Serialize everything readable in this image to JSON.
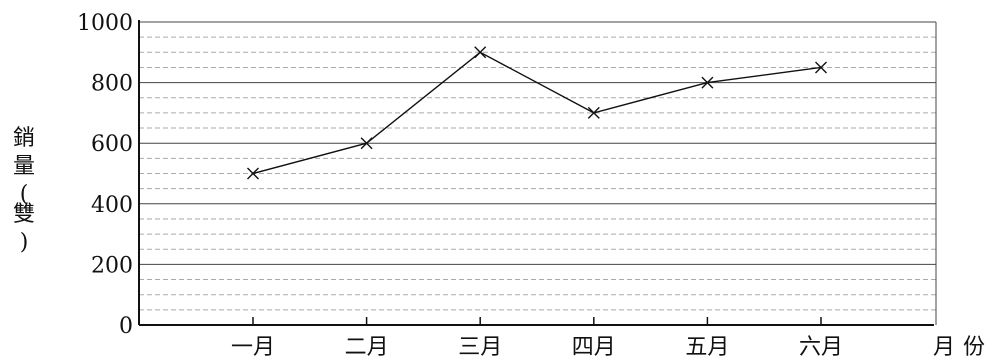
{
  "chart_data": {
    "type": "line",
    "categories": [
      "一月",
      "二月",
      "三月",
      "四月",
      "五月",
      "六月"
    ],
    "series": [
      {
        "values": [
          500,
          600,
          900,
          700,
          800,
          850
        ]
      }
    ],
    "xlabel": "月份",
    "ylabel": "銷量(雙)",
    "yticks": [
      0,
      200,
      400,
      600,
      800,
      1000
    ],
    "ylim": [
      0,
      1000
    ],
    "minor_grid_step": 50,
    "marker": "x",
    "grid": true,
    "line_color": "#111111",
    "major_grid_color": "#444444",
    "minor_grid_color": "#aaaaaa"
  }
}
